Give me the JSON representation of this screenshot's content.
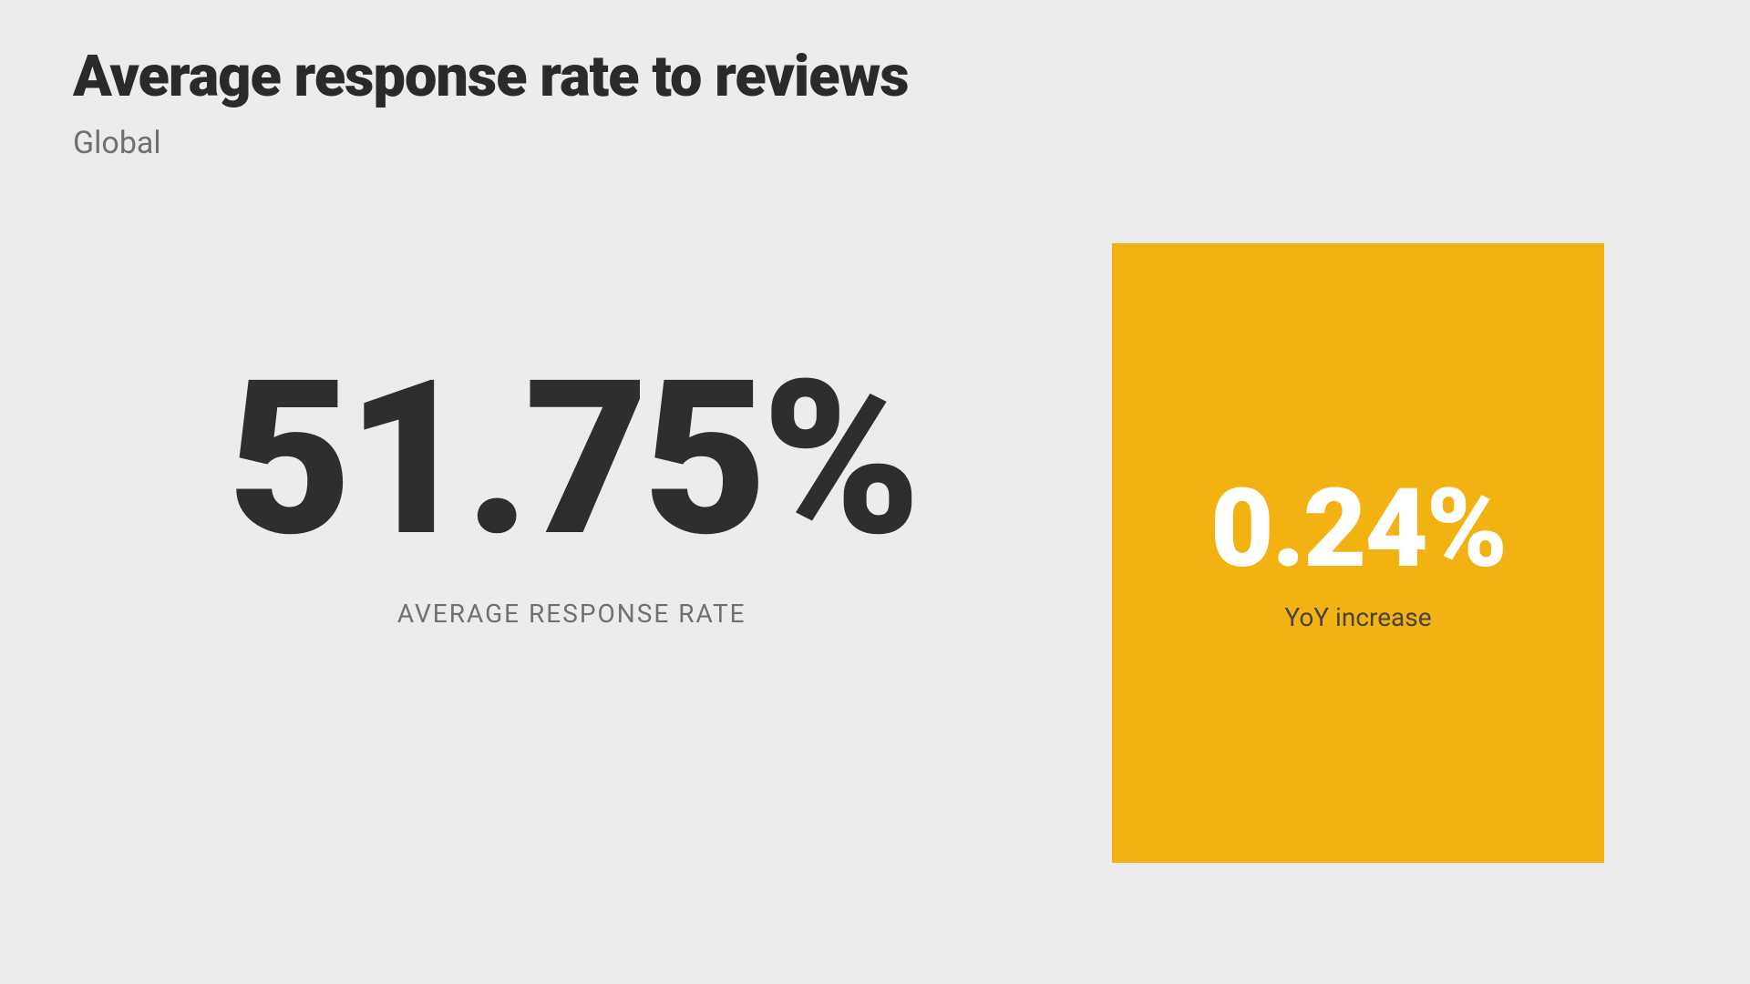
{
  "header": {
    "title": "Average response rate to reviews",
    "subtitle": "Global"
  },
  "main_stat": {
    "value": "51.75%",
    "label": "AVERAGE RESPONSE RATE",
    "value_color": "#2e2e2e",
    "value_fontsize": 235,
    "label_color": "#707070",
    "label_fontsize": 28
  },
  "highlight_stat": {
    "value": "0.24%",
    "label": "YoY increase",
    "box_color": "#f2b211",
    "value_color": "#ffffff",
    "value_fontsize": 120,
    "label_color": "#464340",
    "label_fontsize": 28
  },
  "layout": {
    "background_color": "#ececec",
    "title_color": "#2a2a2a",
    "title_fontsize": 63,
    "subtitle_color": "#707070",
    "subtitle_fontsize": 34
  }
}
